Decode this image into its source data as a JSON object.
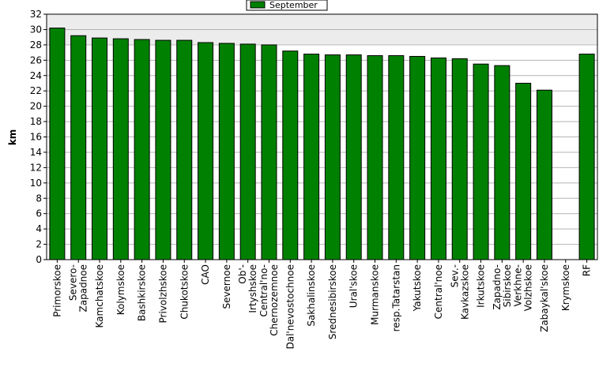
{
  "chart_data": {
    "type": "bar",
    "ylabel": "km",
    "xlabel": "",
    "ylim": [
      0,
      32
    ],
    "ytick_step": 2,
    "grid": true,
    "legend": "top-center",
    "series": [
      {
        "name": "September",
        "color": "#008000",
        "values": [
          30.2,
          29.2,
          28.9,
          28.8,
          28.7,
          28.6,
          28.6,
          28.3,
          28.2,
          28.1,
          28.0,
          27.2,
          26.8,
          26.7,
          26.7,
          26.6,
          26.6,
          26.5,
          26.3,
          26.2,
          25.5,
          25.3,
          23.0,
          22.1,
          null,
          26.8
        ]
      }
    ],
    "categories": [
      [
        "Primorskoe"
      ],
      [
        "Severo-",
        "Zapadnoe"
      ],
      [
        "Kamchatskoe"
      ],
      [
        "Kolymskoe"
      ],
      [
        "Bashkirskoe"
      ],
      [
        "Privolzhskoe"
      ],
      [
        "Chukotskoe"
      ],
      [
        "CAO"
      ],
      [
        "Severnoe"
      ],
      [
        "Ob'-",
        "Irtyshskoe"
      ],
      [
        "Central'no-",
        "Chernozemnoe"
      ],
      [
        "Dal'nevostochnoe"
      ],
      [
        "Sakhalinskoe"
      ],
      [
        "Srednesibirskoe"
      ],
      [
        "Ural'skoe"
      ],
      [
        "Murmanskoe"
      ],
      [
        "resp.Tatarstan"
      ],
      [
        "Yakutskoe"
      ],
      [
        "Central'noe"
      ],
      [
        "Sev.-",
        "Kavkazskoe"
      ],
      [
        "Irkutskoe"
      ],
      [
        "Zapadno-",
        "Sibirskoe"
      ],
      [
        "Verkhne-",
        "Volzhskoe"
      ],
      [
        "Zabaykal'skoe"
      ],
      [
        "Krymskoe"
      ],
      [
        "RF"
      ]
    ]
  }
}
